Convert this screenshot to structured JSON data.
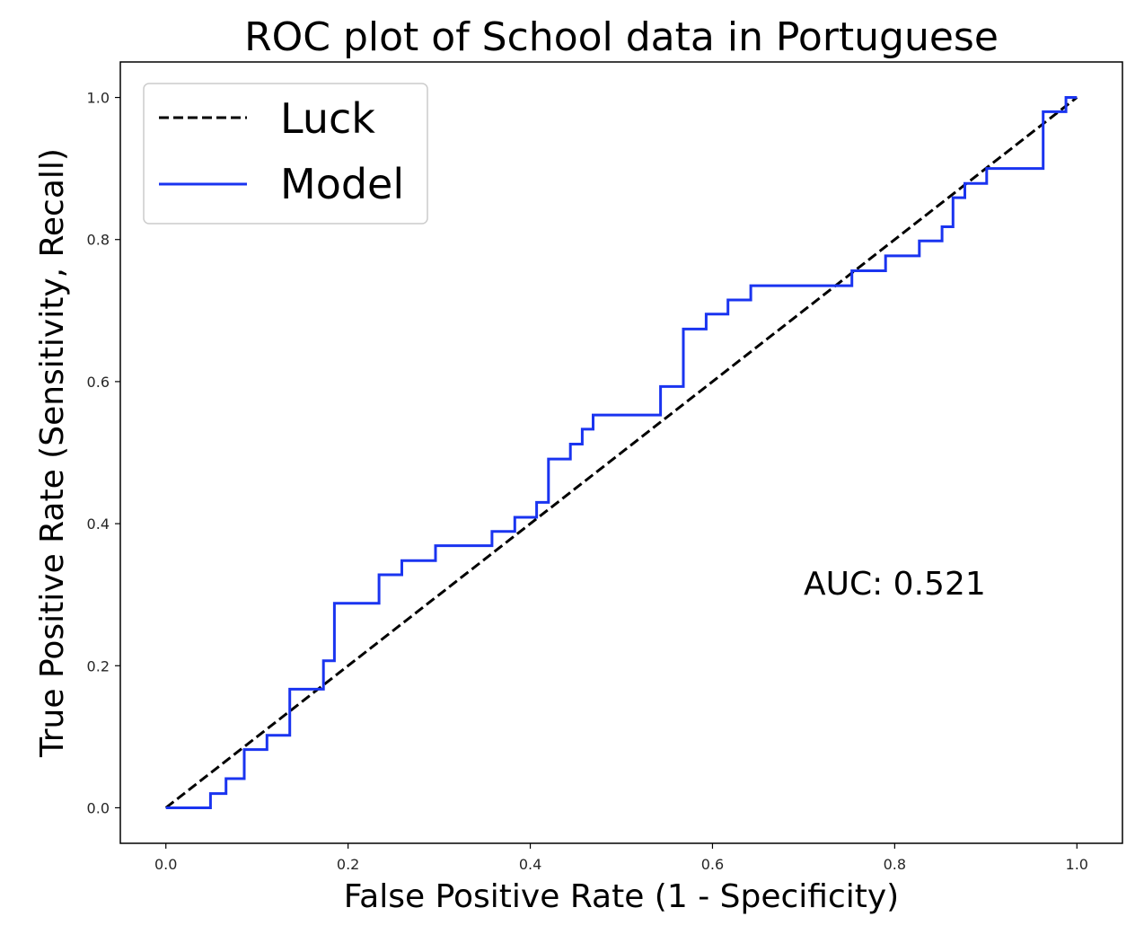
{
  "chart_data": {
    "type": "line",
    "title": "ROC plot of School data in Portuguese",
    "xlabel": "False Positive Rate (1 - Specificity)",
    "ylabel": "True Positive Rate (Sensitivity, Recall)",
    "xlim": [
      -0.05,
      1.05
    ],
    "ylim": [
      -0.05,
      1.05
    ],
    "xticks": [
      0.0,
      0.2,
      0.4,
      0.6,
      0.8,
      1.0
    ],
    "yticks": [
      0.0,
      0.2,
      0.4,
      0.6,
      0.8,
      1.0
    ],
    "xtick_labels": [
      "0.0",
      "0.2",
      "0.4",
      "0.6",
      "0.8",
      "1.0"
    ],
    "ytick_labels": [
      "0.0",
      "0.2",
      "0.4",
      "0.6",
      "0.8",
      "1.0"
    ],
    "grid": false,
    "legend_position": "top-left",
    "annotation": "AUC: 0.521",
    "series": [
      {
        "name": "Luck",
        "style": "dashed",
        "color": "#000000",
        "points": [
          [
            0.0,
            0.0
          ],
          [
            1.0,
            1.0
          ]
        ]
      },
      {
        "name": "Model",
        "style": "solid",
        "color": "#1a34f0",
        "points": [
          [
            0.0,
            0.0
          ],
          [
            0.049,
            0.0
          ],
          [
            0.049,
            0.02
          ],
          [
            0.066,
            0.02
          ],
          [
            0.066,
            0.041
          ],
          [
            0.086,
            0.041
          ],
          [
            0.086,
            0.082
          ],
          [
            0.111,
            0.082
          ],
          [
            0.111,
            0.102
          ],
          [
            0.136,
            0.102
          ],
          [
            0.136,
            0.167
          ],
          [
            0.173,
            0.167
          ],
          [
            0.173,
            0.207
          ],
          [
            0.185,
            0.207
          ],
          [
            0.185,
            0.288
          ],
          [
            0.234,
            0.288
          ],
          [
            0.234,
            0.328
          ],
          [
            0.259,
            0.328
          ],
          [
            0.259,
            0.348
          ],
          [
            0.296,
            0.348
          ],
          [
            0.296,
            0.369
          ],
          [
            0.358,
            0.369
          ],
          [
            0.358,
            0.389
          ],
          [
            0.383,
            0.389
          ],
          [
            0.383,
            0.409
          ],
          [
            0.407,
            0.409
          ],
          [
            0.407,
            0.43
          ],
          [
            0.42,
            0.43
          ],
          [
            0.42,
            0.491
          ],
          [
            0.444,
            0.491
          ],
          [
            0.444,
            0.512
          ],
          [
            0.457,
            0.512
          ],
          [
            0.457,
            0.533
          ],
          [
            0.469,
            0.533
          ],
          [
            0.469,
            0.553
          ],
          [
            0.543,
            0.553
          ],
          [
            0.543,
            0.593
          ],
          [
            0.568,
            0.593
          ],
          [
            0.568,
            0.674
          ],
          [
            0.593,
            0.674
          ],
          [
            0.593,
            0.695
          ],
          [
            0.617,
            0.695
          ],
          [
            0.617,
            0.715
          ],
          [
            0.642,
            0.715
          ],
          [
            0.642,
            0.735
          ],
          [
            0.753,
            0.735
          ],
          [
            0.753,
            0.756
          ],
          [
            0.79,
            0.756
          ],
          [
            0.79,
            0.777
          ],
          [
            0.827,
            0.777
          ],
          [
            0.827,
            0.798
          ],
          [
            0.852,
            0.798
          ],
          [
            0.852,
            0.818
          ],
          [
            0.864,
            0.818
          ],
          [
            0.864,
            0.859
          ],
          [
            0.877,
            0.859
          ],
          [
            0.877,
            0.879
          ],
          [
            0.901,
            0.879
          ],
          [
            0.901,
            0.9
          ],
          [
            0.963,
            0.9
          ],
          [
            0.963,
            0.98
          ],
          [
            0.988,
            0.98
          ],
          [
            0.988,
            1.0
          ],
          [
            1.0,
            1.0
          ]
        ]
      }
    ]
  }
}
